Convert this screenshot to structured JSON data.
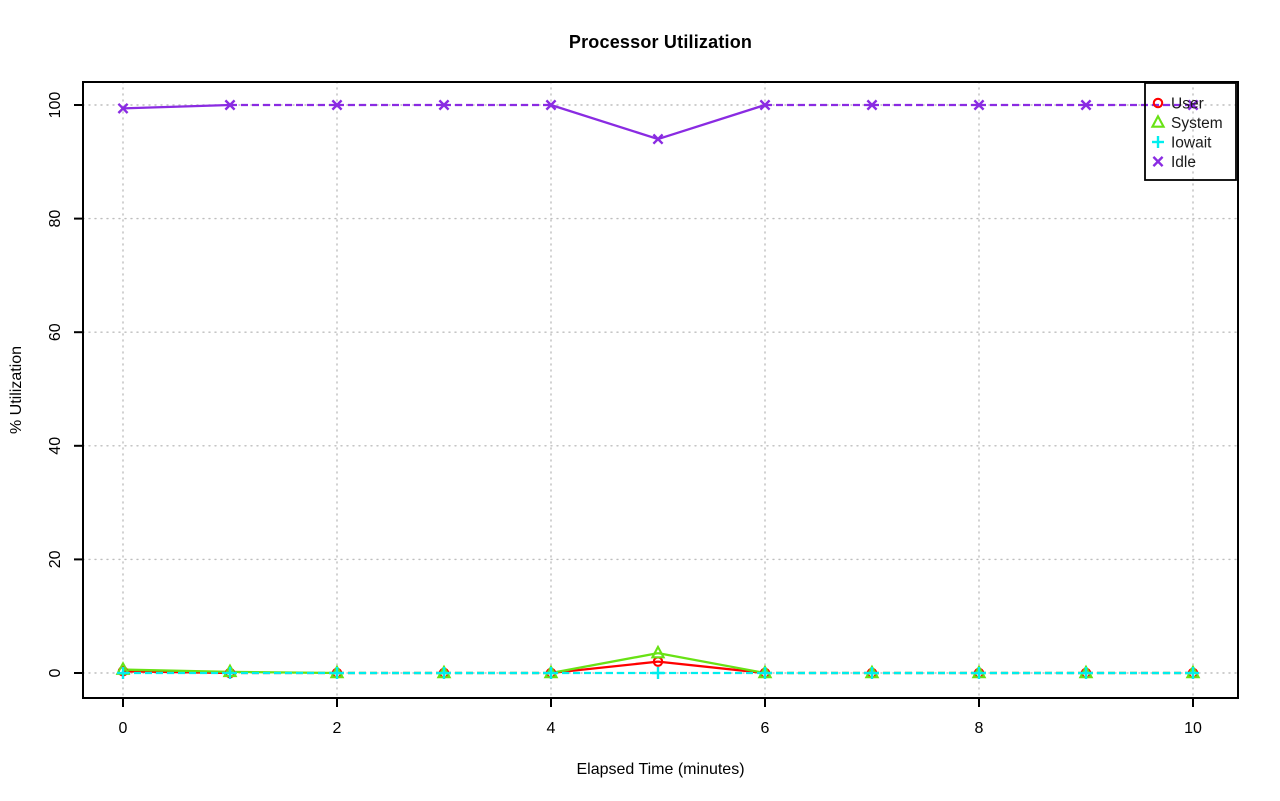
{
  "chart_data": {
    "type": "line",
    "title": "Processor Utilization",
    "xlabel": "Elapsed Time (minutes)",
    "ylabel": "% Utilization",
    "x": [
      0,
      1,
      2,
      3,
      4,
      5,
      6,
      7,
      8,
      9,
      10
    ],
    "series": [
      {
        "name": "User",
        "color": "#FF0000",
        "marker": "circle",
        "values": [
          0.3,
          0,
          0,
          0,
          0,
          2,
          0,
          0,
          0,
          0,
          0
        ]
      },
      {
        "name": "System",
        "color": "#68E214",
        "marker": "triangle",
        "values": [
          0.6,
          0.2,
          0,
          0,
          0,
          3.5,
          0,
          0,
          0,
          0,
          0
        ]
      },
      {
        "name": "Iowait",
        "color": "#00EEEE",
        "marker": "plus",
        "values": [
          0,
          0,
          0,
          0,
          0,
          0,
          0,
          0,
          0,
          0,
          0
        ]
      },
      {
        "name": "Idle",
        "color": "#8A2BE2",
        "marker": "x",
        "values": [
          99.4,
          100,
          100,
          100,
          100,
          94,
          100,
          100,
          100,
          100,
          100
        ]
      }
    ],
    "x_ticks": [
      0,
      2,
      4,
      6,
      8,
      10
    ],
    "y_ticks": [
      0,
      20,
      40,
      60,
      80,
      100
    ],
    "xlim": [
      0,
      10
    ],
    "ylim": [
      0,
      100
    ],
    "grid": "dotted",
    "grid_color": "#BEBEBE",
    "axis_color": "#000000",
    "legend": {
      "position": "top-right"
    }
  }
}
